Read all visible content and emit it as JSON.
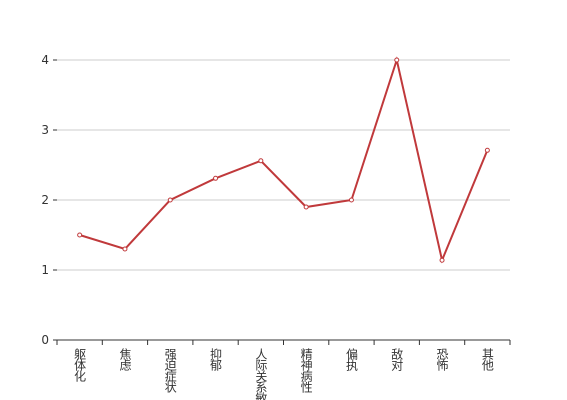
{
  "chart_data": {
    "type": "line",
    "categories": [
      "躯体化",
      "焦虑",
      "强迫症状",
      "抑郁",
      "人际关系敏感",
      "精神病性",
      "偏执",
      "敌对",
      "恐怖",
      "其他"
    ],
    "series": [
      {
        "color": "#c0393b",
        "values": [
          1.5,
          1.3,
          2.0,
          2.31,
          2.56,
          1.9,
          2.0,
          4.0,
          1.14,
          2.71
        ]
      }
    ],
    "ylim": [
      0,
      4
    ],
    "yticks": [
      0,
      1,
      2,
      3,
      4
    ],
    "grid": true
  }
}
